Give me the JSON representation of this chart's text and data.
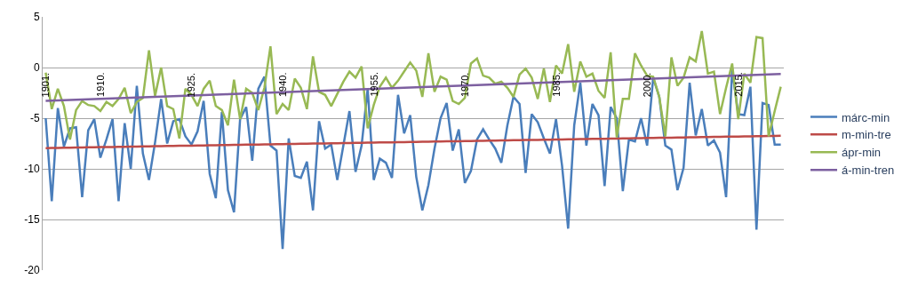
{
  "chart_data": {
    "type": "line",
    "categories": [
      "1901.",
      null,
      null,
      null,
      null,
      null,
      null,
      null,
      null,
      "1910.",
      null,
      null,
      null,
      null,
      null,
      null,
      null,
      null,
      null,
      null,
      null,
      null,
      null,
      null,
      "1925.",
      null,
      null,
      null,
      null,
      null,
      null,
      null,
      null,
      null,
      null,
      null,
      null,
      null,
      null,
      "1940.",
      null,
      null,
      null,
      null,
      null,
      null,
      null,
      null,
      null,
      null,
      null,
      null,
      null,
      null,
      "1955.",
      null,
      null,
      null,
      null,
      null,
      null,
      null,
      null,
      null,
      null,
      null,
      null,
      null,
      null,
      "1970.",
      null,
      null,
      null,
      null,
      null,
      null,
      null,
      null,
      null,
      null,
      null,
      null,
      null,
      null,
      "1985.",
      null,
      null,
      null,
      null,
      null,
      null,
      null,
      null,
      null,
      null,
      null,
      null,
      null,
      null,
      "2000.",
      null,
      null,
      null,
      null,
      null,
      null,
      null,
      null,
      null,
      null,
      null,
      null,
      null,
      null,
      "2015.",
      null,
      null,
      null,
      null,
      null,
      null,
      null
    ],
    "series": [
      {
        "name": "márc-min",
        "color": "#4a7ebb",
        "values": [
          -5.0,
          -13.2,
          -4.0,
          -7.8,
          -6.0,
          -5.9,
          -12.8,
          -6.2,
          -5.1,
          -8.9,
          -7.1,
          -5.1,
          -13.2,
          -5.5,
          -10.0,
          -1.8,
          -8.5,
          -11.1,
          -7.4,
          -3.1,
          -7.5,
          -5.3,
          -5.1,
          -6.8,
          -7.6,
          -6.3,
          -3.3,
          -10.5,
          -12.9,
          -4.4,
          -12.1,
          -14.3,
          -5.1,
          -3.9,
          -9.2,
          -2.1,
          -0.9,
          -7.7,
          -8.2,
          -17.9,
          -7.0,
          -10.7,
          -10.9,
          -9.3,
          -14.1,
          -5.3,
          -8.0,
          -7.6,
          -11.1,
          -7.7,
          -4.3,
          -10.3,
          -7.7,
          -2.1,
          -11.1,
          -9.0,
          -9.4,
          -10.9,
          -2.7,
          -6.5,
          -4.7,
          -10.8,
          -14.1,
          -11.6,
          -8.0,
          -5.0,
          -3.5,
          -8.2,
          -6.1,
          -11.4,
          -10.2,
          -7.1,
          -6.1,
          -7.1,
          -8.0,
          -9.4,
          -5.7,
          -2.9,
          -3.6,
          -10.4,
          -4.6,
          -5.4,
          -7.0,
          -8.5,
          -5.1,
          -9.7,
          -15.9,
          -5.7,
          -1.5,
          -7.7,
          -3.6,
          -4.7,
          -11.7,
          -3.9,
          -5.0,
          -12.2,
          -7.1,
          -7.3,
          -5.0,
          -7.7,
          -1.0,
          -2.9,
          -7.7,
          -8.1,
          -12.1,
          -9.9,
          -1.5,
          -6.7,
          -4.1,
          -7.7,
          -7.2,
          -8.4,
          -12.8,
          -0.2,
          -4.6,
          -4.7,
          -1.9,
          -16.0,
          -3.5,
          -3.7,
          -7.6,
          -7.6
        ]
      },
      {
        "name": "m-min-tre",
        "color": "#be4b48",
        "values": [
          -7.95,
          -7.94,
          -7.93,
          -7.92,
          -7.91,
          -7.9,
          -7.89,
          -7.88,
          -7.87,
          -7.86,
          -7.85,
          -7.84,
          -7.83,
          -7.82,
          -7.81,
          -7.8,
          -7.79,
          -7.78,
          -7.77,
          -7.76,
          -7.75,
          -7.74,
          -7.73,
          -7.72,
          -7.71,
          -7.7,
          -7.69,
          -7.68,
          -7.67,
          -7.66,
          -7.65,
          -7.64,
          -7.63,
          -7.62,
          -7.61,
          -7.6,
          -7.59,
          -7.58,
          -7.57,
          -7.56,
          -7.55,
          -7.54,
          -7.53,
          -7.52,
          -7.51,
          -7.5,
          -7.49,
          -7.48,
          -7.47,
          -7.46,
          -7.45,
          -7.44,
          -7.43,
          -7.42,
          -7.41,
          -7.4,
          -7.39,
          -7.38,
          -7.37,
          -7.36,
          -7.35,
          -7.34,
          -7.33,
          -7.32,
          -7.31,
          -7.3,
          -7.29,
          -7.28,
          -7.27,
          -7.26,
          -7.25,
          -7.24,
          -7.23,
          -7.22,
          -7.21,
          -7.2,
          -7.19,
          -7.18,
          -7.17,
          -7.16,
          -7.15,
          -7.14,
          -7.13,
          -7.12,
          -7.11,
          -7.1,
          -7.09,
          -7.08,
          -7.07,
          -7.06,
          -7.05,
          -7.04,
          -7.03,
          -7.02,
          -7.01,
          -7.0,
          -6.99,
          -6.98,
          -6.97,
          -6.96,
          -6.95,
          -6.94,
          -6.93,
          -6.92,
          -6.91,
          -6.9,
          -6.89,
          -6.88,
          -6.87,
          -6.86,
          -6.85,
          -6.84,
          -6.83,
          -6.82,
          -6.81,
          -6.8,
          -6.79,
          -6.78,
          -6.77,
          -6.76,
          -6.75,
          -6.74
        ]
      },
      {
        "name": "ápr-min",
        "color": "#98b954",
        "values": [
          -0.5,
          -4.1,
          -2.1,
          -3.8,
          -7.1,
          -4.2,
          -3.3,
          -3.7,
          -3.8,
          -4.3,
          -3.4,
          -3.8,
          -3.1,
          -2.0,
          -4.5,
          -3.4,
          -3.0,
          1.7,
          -2.8,
          0.0,
          -3.8,
          -4.1,
          -7.0,
          -2.1,
          -2.7,
          -3.8,
          -2.1,
          -1.3,
          -3.8,
          -4.2,
          -5.7,
          -1.2,
          -5.1,
          -2.1,
          -2.5,
          -4.2,
          -2.0,
          2.1,
          -4.6,
          -3.6,
          -4.2,
          -1.1,
          -2.0,
          -4.1,
          1.1,
          -2.4,
          -2.7,
          -3.8,
          -2.6,
          -1.4,
          -0.4,
          -1.0,
          0.1,
          -6.0,
          -3.7,
          -1.9,
          -1.0,
          -2.0,
          -1.3,
          -0.4,
          0.5,
          -0.3,
          -2.9,
          1.4,
          -2.4,
          -0.9,
          -1.2,
          -3.3,
          -3.6,
          -3.0,
          0.4,
          0.9,
          -0.8,
          -1.0,
          -1.6,
          -1.4,
          -2.0,
          -2.9,
          -0.7,
          -0.1,
          -1.0,
          -3.1,
          -0.1,
          -3.4,
          0.2,
          -0.6,
          2.3,
          -2.4,
          0.6,
          -0.9,
          -0.6,
          -2.3,
          -3.0,
          1.5,
          -6.9,
          -3.1,
          -3.1,
          1.4,
          0.2,
          -0.8,
          -0.9,
          -2.9,
          -6.8,
          1.0,
          -1.8,
          -1.0,
          1.0,
          0.6,
          3.6,
          -0.6,
          -0.4,
          -4.6,
          -2.0,
          0.4,
          -5.1,
          -0.6,
          -1.5,
          3.0,
          2.9,
          -6.8,
          -4.3,
          -1.9
        ]
      },
      {
        "name": "á-min-tren",
        "color": "#7d60a0",
        "values": [
          -3.3,
          -3.278,
          -3.256,
          -3.234,
          -3.212,
          -3.19,
          -3.168,
          -3.146,
          -3.124,
          -3.102,
          -3.08,
          -3.058,
          -3.036,
          -3.014,
          -2.992,
          -2.97,
          -2.948,
          -2.926,
          -2.904,
          -2.882,
          -2.86,
          -2.838,
          -2.816,
          -2.794,
          -2.772,
          -2.75,
          -2.728,
          -2.706,
          -2.684,
          -2.662,
          -2.64,
          -2.618,
          -2.596,
          -2.574,
          -2.552,
          -2.53,
          -2.508,
          -2.486,
          -2.464,
          -2.442,
          -2.42,
          -2.398,
          -2.376,
          -2.354,
          -2.332,
          -2.31,
          -2.288,
          -2.266,
          -2.244,
          -2.222,
          -2.2,
          -2.178,
          -2.156,
          -2.134,
          -2.112,
          -2.09,
          -2.068,
          -2.046,
          -2.024,
          -2.002,
          -1.98,
          -1.958,
          -1.936,
          -1.914,
          -1.892,
          -1.87,
          -1.848,
          -1.826,
          -1.804,
          -1.782,
          -1.76,
          -1.738,
          -1.716,
          -1.694,
          -1.672,
          -1.65,
          -1.628,
          -1.606,
          -1.584,
          -1.562,
          -1.54,
          -1.518,
          -1.496,
          -1.474,
          -1.452,
          -1.43,
          -1.408,
          -1.386,
          -1.364,
          -1.342,
          -1.32,
          -1.298,
          -1.276,
          -1.254,
          -1.232,
          -1.21,
          -1.188,
          -1.166,
          -1.144,
          -1.122,
          -1.1,
          -1.078,
          -1.056,
          -1.034,
          -1.012,
          -0.99,
          -0.968,
          -0.946,
          -0.924,
          -0.902,
          -0.88,
          -0.858,
          -0.836,
          -0.814,
          -0.792,
          -0.77,
          -0.748,
          -0.726,
          -0.704,
          -0.682,
          -0.66,
          -0.638
        ]
      }
    ],
    "ylim": [
      -20,
      5
    ],
    "yticks": [
      -20,
      -15,
      -10,
      -5,
      0,
      5
    ],
    "grid": "y",
    "legend": "right"
  }
}
